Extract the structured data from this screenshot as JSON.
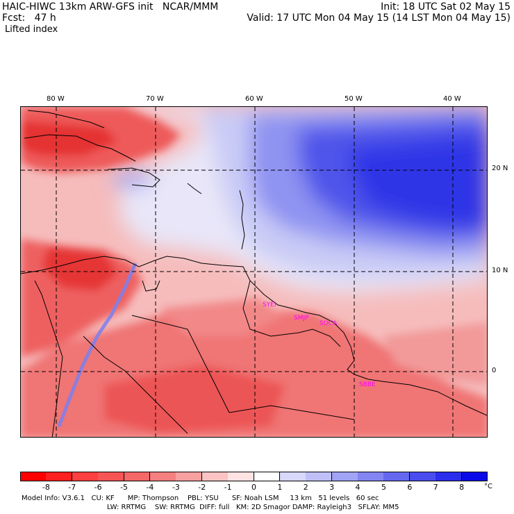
{
  "header": {
    "line1_left": "HAIC-HIWC 13km ARW-GFS init   NCAR/MMM",
    "line1_right": "Init: 18 UTC Sat 02 May 15",
    "line2_left": "Fcst:   47 h",
    "line2_right": "Valid: 17 UTC Mon 04 May 15 (14 LST Mon 04 May 15)",
    "field": "Lifted index"
  },
  "axes": {
    "lon_labels": [
      "80 W",
      "70 W",
      "60 W",
      "50 W",
      "40 W"
    ],
    "lat_labels": [
      "20 N",
      "10 N",
      "0"
    ]
  },
  "stations": [
    "SYEI",
    "SMJP",
    "SOCA",
    "SBBE"
  ],
  "colorbar": {
    "labels": [
      "-8",
      "-7",
      "-6",
      "-5",
      "-4",
      "-3",
      "-2",
      "-1",
      "0",
      "1",
      "2",
      "3",
      "4",
      "5",
      "6",
      "7",
      "8"
    ],
    "unit": "°C",
    "colors": [
      "#ff0000",
      "#ff2020",
      "#ff4040",
      "#f75555",
      "#f56868",
      "#f58080",
      "#f8a0a0",
      "#fbc3c3",
      "#ffe3e3",
      "#ffffff",
      "#d8d8fb",
      "#bfc0f8",
      "#a1a3f5",
      "#8285f2",
      "#6568ef",
      "#4a4ded",
      "#2a2deb",
      "#0a0ae8"
    ]
  },
  "footer": {
    "line1": "Model Info: V3.6.1   CU: KF      MP: Thompson    PBL: YSU      SF: Noah LSM     13 km   51 levels   60 sec",
    "line2": "LW: RRTMG    SW: RRTMG  DIFF: full   KM: 2D Smagor DAMP: Rayleigh3   SFLAY: MM5"
  }
}
